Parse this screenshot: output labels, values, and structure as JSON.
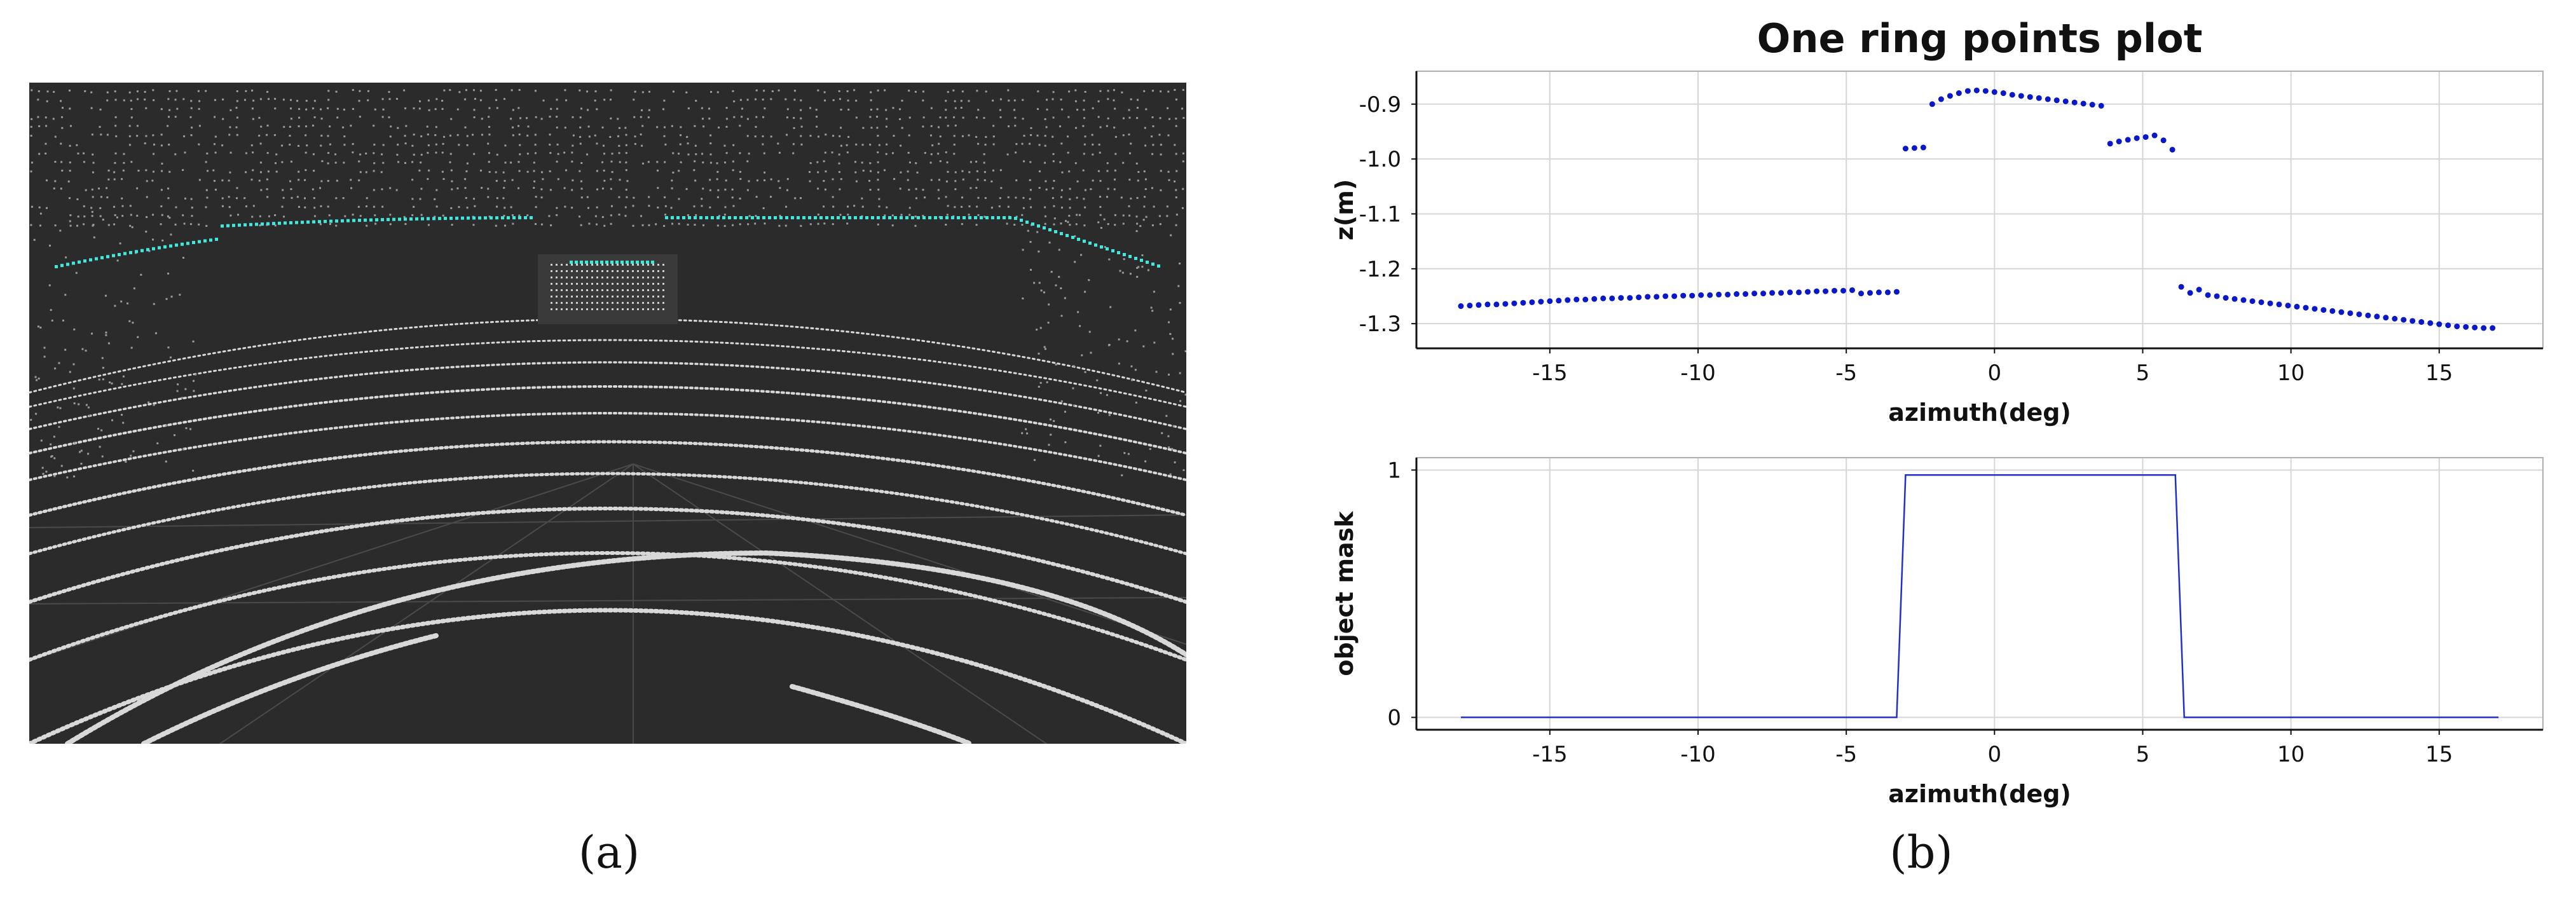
{
  "panel_a": {
    "caption": "(a)"
  },
  "panel_b": {
    "caption": "(b)"
  },
  "chart_data": [
    {
      "type": "scatter",
      "title": "One ring points plot",
      "xlabel": "azimuth(deg)",
      "ylabel": "z(m)",
      "xlim": [
        -19.5,
        18.5
      ],
      "ylim": [
        -1.345,
        -0.84
      ],
      "xticks": [
        -15,
        -10,
        -5,
        0,
        5,
        10,
        15
      ],
      "yticks": [
        -0.9,
        -1.0,
        -1.1,
        -1.2,
        -1.3
      ],
      "ytick_labels": [
        "-0.9",
        "-1.0",
        "-1.1",
        "-1.2",
        "-1.3"
      ],
      "grid": true,
      "color": "#0b18c8",
      "series": [
        {
          "x": [
            -18.0,
            -17.7,
            -17.4,
            -17.1,
            -16.8,
            -16.5,
            -16.2,
            -15.9,
            -15.6,
            -15.3,
            -15.0,
            -14.7,
            -14.4,
            -14.1,
            -13.8,
            -13.5,
            -13.2,
            -12.9,
            -12.6,
            -12.3,
            -12.0,
            -11.7,
            -11.4,
            -11.1,
            -10.8,
            -10.5,
            -10.2,
            -9.9,
            -9.6,
            -9.3,
            -9.0,
            -8.7,
            -8.4,
            -8.1,
            -7.8,
            -7.5,
            -7.2,
            -6.9,
            -6.6,
            -6.3,
            -6.0,
            -5.7,
            -5.4,
            -5.1,
            -4.8,
            -4.5,
            -4.2,
            -3.9,
            -3.6,
            -3.3,
            -3.0,
            -2.7,
            -2.4,
            -2.1,
            -1.8,
            -1.5,
            -1.2,
            -0.9,
            -0.6,
            -0.3,
            0.0,
            0.3,
            0.6,
            0.9,
            1.2,
            1.5,
            1.8,
            2.1,
            2.4,
            2.7,
            3.0,
            3.3,
            3.6,
            3.9,
            4.2,
            4.5,
            4.8,
            5.1,
            5.4,
            5.7,
            6.0,
            6.3,
            6.6,
            6.9,
            7.2,
            7.5,
            7.8,
            8.1,
            8.4,
            8.7,
            9.0,
            9.3,
            9.6,
            9.9,
            10.2,
            10.5,
            10.8,
            11.1,
            11.4,
            11.7,
            12.0,
            12.3,
            12.6,
            12.9,
            13.2,
            13.5,
            13.8,
            14.1,
            14.4,
            14.7,
            15.0,
            15.3,
            15.6,
            15.9,
            16.2,
            16.5,
            16.8
          ],
          "y": [
            -1.268,
            -1.267,
            -1.266,
            -1.265,
            -1.265,
            -1.264,
            -1.263,
            -1.262,
            -1.261,
            -1.26,
            -1.259,
            -1.258,
            -1.257,
            -1.256,
            -1.256,
            -1.255,
            -1.254,
            -1.254,
            -1.253,
            -1.253,
            -1.252,
            -1.251,
            -1.251,
            -1.25,
            -1.25,
            -1.249,
            -1.249,
            -1.248,
            -1.248,
            -1.247,
            -1.247,
            -1.246,
            -1.246,
            -1.245,
            -1.245,
            -1.244,
            -1.244,
            -1.243,
            -1.243,
            -1.242,
            -1.241,
            -1.241,
            -1.24,
            -1.24,
            -1.239,
            -1.245,
            -1.244,
            -1.243,
            -1.243,
            -1.242,
            -0.981,
            -0.98,
            -0.979,
            -0.9,
            -0.891,
            -0.885,
            -0.88,
            -0.876,
            -0.875,
            -0.876,
            -0.878,
            -0.88,
            -0.883,
            -0.885,
            -0.887,
            -0.889,
            -0.891,
            -0.893,
            -0.895,
            -0.897,
            -0.899,
            -0.901,
            -0.903,
            -0.972,
            -0.968,
            -0.965,
            -0.962,
            -0.96,
            -0.957,
            -0.966,
            -0.983,
            -1.233,
            -1.244,
            -1.238,
            -1.248,
            -1.25,
            -1.253,
            -1.255,
            -1.257,
            -1.259,
            -1.261,
            -1.263,
            -1.265,
            -1.267,
            -1.269,
            -1.271,
            -1.273,
            -1.275,
            -1.277,
            -1.279,
            -1.281,
            -1.283,
            -1.285,
            -1.287,
            -1.289,
            -1.291,
            -1.293,
            -1.295,
            -1.297,
            -1.299,
            -1.301,
            -1.303,
            -1.305,
            -1.306,
            -1.307,
            -1.308,
            -1.308
          ]
        }
      ]
    },
    {
      "type": "line",
      "xlabel": "azimuth(deg)",
      "ylabel": "object mask",
      "xlim": [
        -19.5,
        18.5
      ],
      "ylim": [
        -0.05,
        1.05
      ],
      "xticks": [
        -15,
        -10,
        -5,
        0,
        5,
        10,
        15
      ],
      "yticks": [
        0,
        1
      ],
      "ytick_labels": [
        "0",
        "1"
      ],
      "grid": true,
      "color": "#2030c8",
      "series": [
        {
          "x": [
            -18.0,
            -3.3,
            -3.0,
            6.1,
            6.4,
            17.0
          ],
          "y": [
            0,
            0,
            0.98,
            0.98,
            0,
            0
          ]
        }
      ]
    }
  ]
}
